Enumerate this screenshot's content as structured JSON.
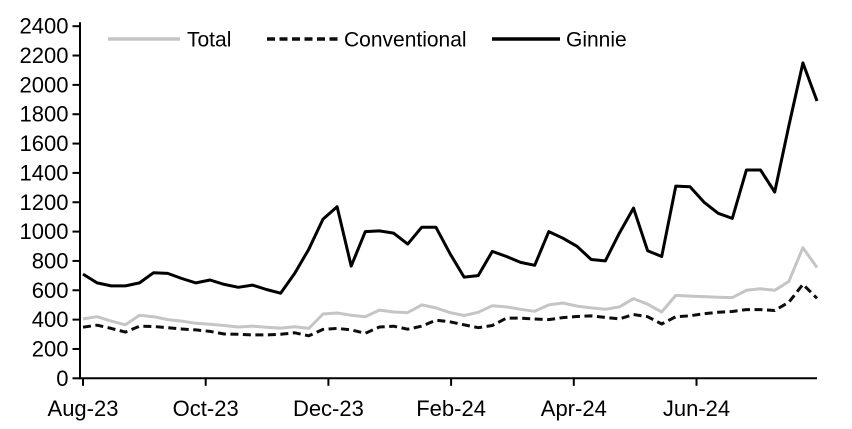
{
  "chart_data": {
    "type": "line",
    "title": "",
    "xlabel": "",
    "ylabel": "",
    "grid": false,
    "legend_position": "top",
    "ylim": [
      0,
      2400
    ],
    "y_tick_step": 200,
    "y_ticks": [
      0,
      200,
      400,
      600,
      800,
      1000,
      1200,
      1400,
      1600,
      1800,
      2000,
      2200,
      2400
    ],
    "x_tick_labels": [
      "Aug-23",
      "Oct-23",
      "Dec-23",
      "Feb-24",
      "Apr-24",
      "Jun-24"
    ],
    "x_frequency": "weekly",
    "colors": {
      "total": "#c5c5c5",
      "conventional": "#0d0d0d",
      "ginnie": "#000000",
      "axis": "#000000"
    },
    "series": [
      {
        "name": "Total",
        "style": "solid",
        "color": "#c5c5c5",
        "values": [
          405,
          420,
          390,
          365,
          430,
          420,
          400,
          390,
          375,
          368,
          360,
          350,
          356,
          348,
          342,
          352,
          340,
          438,
          445,
          430,
          420,
          465,
          452,
          448,
          500,
          480,
          448,
          428,
          450,
          495,
          487,
          470,
          457,
          500,
          513,
          492,
          480,
          470,
          487,
          543,
          505,
          452,
          565,
          560,
          557,
          553,
          550,
          600,
          610,
          600,
          660,
          890,
          755
        ]
      },
      {
        "name": "Conventional",
        "style": "dashed",
        "color": "#0d0d0d",
        "values": [
          348,
          362,
          340,
          315,
          355,
          353,
          345,
          336,
          330,
          320,
          302,
          300,
          296,
          296,
          300,
          310,
          290,
          333,
          340,
          330,
          307,
          350,
          355,
          335,
          356,
          396,
          385,
          365,
          345,
          360,
          410,
          410,
          404,
          400,
          414,
          421,
          425,
          415,
          405,
          435,
          420,
          370,
          420,
          426,
          440,
          450,
          455,
          468,
          468,
          462,
          518,
          640,
          545
        ]
      },
      {
        "name": "Ginnie",
        "style": "solid",
        "color": "#000000",
        "values": [
          710,
          650,
          630,
          630,
          650,
          720,
          715,
          680,
          650,
          670,
          640,
          620,
          635,
          605,
          580,
          715,
          880,
          1085,
          1170,
          765,
          1000,
          1005,
          990,
          915,
          1030,
          1030,
          850,
          690,
          700,
          865,
          830,
          790,
          770,
          1000,
          955,
          900,
          810,
          800,
          990,
          1160,
          870,
          830,
          1310,
          1305,
          1200,
          1125,
          1090,
          1420,
          1420,
          1270,
          1720,
          2150,
          1890
        ]
      }
    ]
  }
}
